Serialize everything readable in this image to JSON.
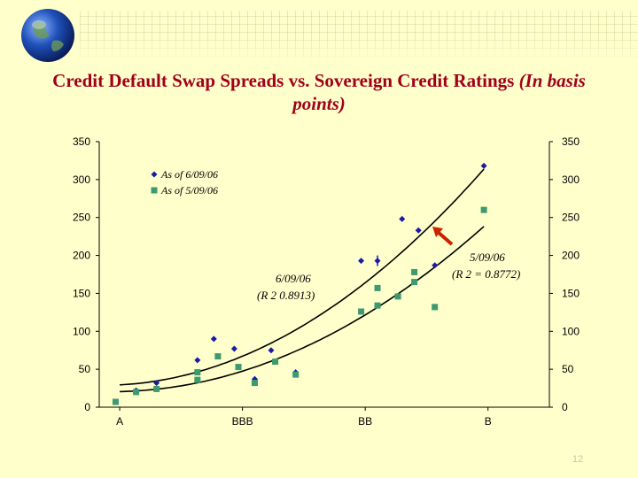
{
  "header": {
    "title_main": "Credit Default Swap Spreads vs. Sovereign Credit Ratings",
    "title_italic": "(In basis points)",
    "globe_icon": "globe-icon"
  },
  "page_number": "12",
  "colors": {
    "background": "#ffffcc",
    "title": "#a0001a",
    "series_0609": "#1a1aa6",
    "series_0509": "#3c9a6e",
    "arrow": "#cc2200"
  },
  "chart_data": {
    "type": "scatter",
    "title": "Credit Default Swap Spreads vs. Sovereign Credit Ratings (In basis points)",
    "xlabel": "",
    "ylabel": "",
    "x_ticks": [
      "A",
      "BBB",
      "BB",
      "B"
    ],
    "x_tick_positions": [
      0,
      3,
      6,
      9
    ],
    "xlim": [
      -0.5,
      10.5
    ],
    "ylim": [
      0,
      350
    ],
    "y_ticks": [
      0,
      50,
      100,
      150,
      200,
      250,
      300,
      350
    ],
    "legend_position": "top-left",
    "grid": false,
    "series": [
      {
        "name": "As of 6/09/06",
        "marker": "diamond",
        "points": [
          [
            0.4,
            22
          ],
          [
            0.9,
            32
          ],
          [
            1.9,
            62
          ],
          [
            2.3,
            90
          ],
          [
            2.8,
            77
          ],
          [
            3.3,
            37
          ],
          [
            3.7,
            75
          ],
          [
            4.3,
            46
          ],
          [
            5.9,
            193
          ],
          [
            6.3,
            193
          ],
          [
            6.9,
            248
          ],
          [
            7.3,
            233
          ],
          [
            7.7,
            187
          ],
          [
            8.9,
            318
          ]
        ],
        "trend": {
          "label": "6/09/06",
          "r2": "(R 2  0.8913)"
        }
      },
      {
        "name": "As of 5/09/06",
        "marker": "square",
        "points": [
          [
            -0.1,
            7
          ],
          [
            0.4,
            20
          ],
          [
            0.9,
            24
          ],
          [
            1.9,
            46
          ],
          [
            1.9,
            36
          ],
          [
            2.4,
            67
          ],
          [
            2.9,
            53
          ],
          [
            3.3,
            32
          ],
          [
            3.8,
            60
          ],
          [
            4.3,
            43
          ],
          [
            5.9,
            126
          ],
          [
            6.3,
            134
          ],
          [
            6.3,
            157
          ],
          [
            6.8,
            146
          ],
          [
            7.2,
            178
          ],
          [
            7.2,
            165
          ],
          [
            7.7,
            132
          ],
          [
            8.9,
            260
          ]
        ],
        "trend": {
          "label": "5/09/06",
          "r2": "(R 2  = 0.8772)"
        }
      }
    ]
  }
}
